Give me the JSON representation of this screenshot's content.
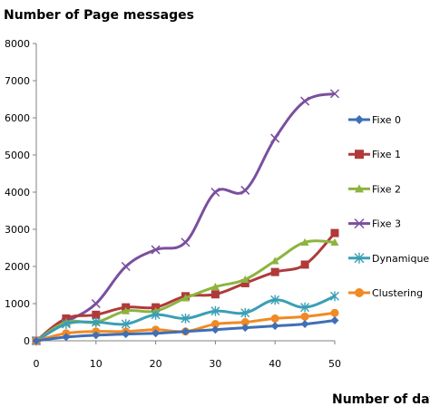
{
  "chart_data": {
    "type": "line",
    "title": "Number of Page messages",
    "xlabel": "Number of days",
    "ylabel": "",
    "xlim": [
      0,
      50
    ],
    "ylim": [
      0,
      8000
    ],
    "x": [
      0,
      5,
      10,
      15,
      20,
      25,
      30,
      35,
      40,
      45,
      50
    ],
    "x_ticks": [
      0,
      10,
      20,
      30,
      40,
      50
    ],
    "y_ticks": [
      0,
      1000,
      2000,
      3000,
      4000,
      5000,
      6000,
      7000,
      8000
    ],
    "grid": false,
    "legend_position": "right",
    "series": [
      {
        "name": "Fixe 0",
        "color": "#3f6fb6",
        "marker": "diamond",
        "values": [
          0,
          100,
          150,
          180,
          200,
          250,
          300,
          350,
          400,
          450,
          550
        ]
      },
      {
        "name": "Fixe 1",
        "color": "#b03a3a",
        "marker": "square",
        "values": [
          0,
          600,
          700,
          900,
          900,
          1200,
          1250,
          1550,
          1850,
          2050,
          2900
        ]
      },
      {
        "name": "Fixe 2",
        "color": "#8cb43e",
        "marker": "triangle",
        "values": [
          0,
          500,
          500,
          800,
          800,
          1150,
          1450,
          1650,
          2150,
          2650,
          2650
        ]
      },
      {
        "name": "Fixe 3",
        "color": "#7a4f9e",
        "marker": "x",
        "values": [
          0,
          500,
          1000,
          2000,
          2450,
          2650,
          4000,
          4050,
          5450,
          6450,
          6650
        ]
      },
      {
        "name": "Dynamique",
        "color": "#3a9fb5",
        "marker": "asterisk",
        "values": [
          0,
          450,
          500,
          450,
          700,
          600,
          800,
          750,
          1100,
          900,
          1200
        ]
      },
      {
        "name": "Clustering",
        "color": "#f08a24",
        "marker": "circle",
        "values": [
          0,
          200,
          250,
          250,
          300,
          250,
          450,
          500,
          600,
          650,
          750
        ]
      }
    ]
  }
}
